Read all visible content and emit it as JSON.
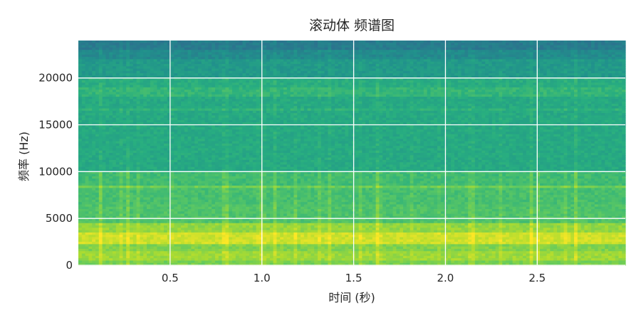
{
  "chart_data": {
    "type": "heatmap",
    "title": "滚动体 频谱图",
    "xlabel": "时间 (秒)",
    "ylabel": "频率 (Hz)",
    "xlim": [
      0.0,
      2.98
    ],
    "ylim": [
      0,
      24000
    ],
    "x_ticks": [
      {
        "value": 0.5,
        "label": "0.5"
      },
      {
        "value": 1.0,
        "label": "1.0"
      },
      {
        "value": 1.5,
        "label": "1.5"
      },
      {
        "value": 2.0,
        "label": "2.0"
      },
      {
        "value": 2.5,
        "label": "2.5"
      }
    ],
    "y_ticks": [
      {
        "value": 0,
        "label": "0"
      },
      {
        "value": 5000,
        "label": "5000"
      },
      {
        "value": 10000,
        "label": "10000"
      },
      {
        "value": 15000,
        "label": "15000"
      },
      {
        "value": 20000,
        "label": "20000"
      }
    ],
    "grid": true,
    "colormap": [
      "#3b528b",
      "#2c728e",
      "#21918c",
      "#28ae80",
      "#5ec962",
      "#addc30",
      "#fde725"
    ],
    "grid_color": "#ffffff",
    "frequency_bands": [
      {
        "from": 0,
        "to": 600,
        "level": 0.72
      },
      {
        "from": 600,
        "to": 1600,
        "level": 0.8
      },
      {
        "from": 1600,
        "to": 2300,
        "level": 0.74
      },
      {
        "from": 2300,
        "to": 3500,
        "level": 0.9
      },
      {
        "from": 3500,
        "to": 4500,
        "level": 0.78
      },
      {
        "from": 4500,
        "to": 6500,
        "level": 0.62
      },
      {
        "from": 6500,
        "to": 8300,
        "level": 0.6
      },
      {
        "from": 8300,
        "to": 8600,
        "level": 0.7
      },
      {
        "from": 8600,
        "to": 10000,
        "level": 0.58
      },
      {
        "from": 10000,
        "to": 16500,
        "level": 0.47
      },
      {
        "from": 16500,
        "to": 16800,
        "level": 0.52
      },
      {
        "from": 16800,
        "to": 18000,
        "level": 0.47
      },
      {
        "from": 18000,
        "to": 19000,
        "level": 0.54
      },
      {
        "from": 19000,
        "to": 20000,
        "level": 0.49
      },
      {
        "from": 20000,
        "to": 22000,
        "level": 0.38
      },
      {
        "from": 22000,
        "to": 23000,
        "level": 0.3
      },
      {
        "from": 23000,
        "to": 24000,
        "level": 0.22
      }
    ]
  }
}
